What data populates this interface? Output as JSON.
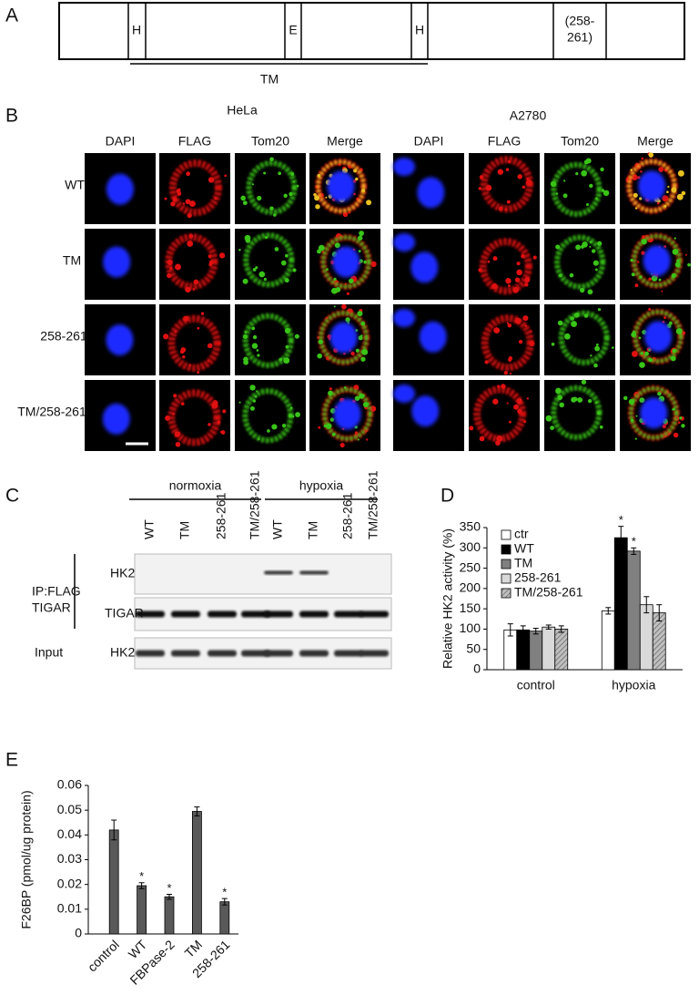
{
  "panel_labels": [
    "A",
    "B",
    "C",
    "D",
    "E"
  ],
  "domain_map": {
    "sites": [
      "H",
      "E",
      "H"
    ],
    "motif": [
      "(258-",
      "261)"
    ],
    "region": "TM"
  },
  "imaging": {
    "cell_lines": [
      {
        "name": "HeLa",
        "channels": [
          "DAPI",
          "FLAG",
          "Tom20",
          "Merge"
        ]
      },
      {
        "name": "A2780",
        "channels": [
          "DAPI",
          "FLAG",
          "Tom20",
          "Merge"
        ]
      }
    ],
    "rows": [
      "WT",
      "TM",
      "258-261",
      "TM/258-261"
    ]
  },
  "blot": {
    "conditions": [
      "normoxia",
      "hypoxia"
    ],
    "lanes": [
      "WT",
      "TM",
      "258-261",
      "TM/258-261",
      "WT",
      "TM",
      "258-261",
      "TM/258-261"
    ],
    "ip_label": [
      "IP:FLAG",
      "TIGAR"
    ],
    "input_label": "Input",
    "bands": [
      "HK2",
      "TIGAR",
      "HK2"
    ]
  },
  "chart_data": [
    {
      "type": "bar",
      "ylabel": "Relative HK2 activity (%)",
      "categories": [
        "control",
        "hypoxia"
      ],
      "series": [
        {
          "name": "ctr",
          "color": "#ffffff",
          "values": [
            98,
            145
          ],
          "errors": [
            15,
            8
          ],
          "significance": [
            null,
            null
          ]
        },
        {
          "name": "WT",
          "color": "#000000",
          "values": [
            98,
            325
          ],
          "errors": [
            10,
            28
          ],
          "significance": [
            null,
            "*"
          ]
        },
        {
          "name": "TM",
          "color": "#808080",
          "values": [
            95,
            292
          ],
          "errors": [
            7,
            8
          ],
          "significance": [
            null,
            "*"
          ]
        },
        {
          "name": "258-261",
          "color": "#d9d9d9",
          "values": [
            105,
            160
          ],
          "errors": [
            5,
            20
          ],
          "significance": [
            null,
            null
          ]
        },
        {
          "name": "TM/258-261",
          "color": "#a6a6a6",
          "hatch": true,
          "values": [
            100,
            140
          ],
          "errors": [
            8,
            20
          ],
          "significance": [
            null,
            null
          ]
        }
      ],
      "ylim": [
        0,
        350
      ],
      "yticks": [
        0,
        50,
        100,
        150,
        200,
        250,
        300,
        350
      ],
      "legend": "upper left"
    },
    {
      "type": "bar",
      "ylabel": "F26BP (pmol/ug protein)",
      "categories": [
        "control",
        "WT",
        "FBPase-2",
        "TM",
        "258-261"
      ],
      "values": [
        0.042,
        0.0195,
        0.015,
        0.0495,
        0.013
      ],
      "errors": [
        0.004,
        0.0012,
        0.001,
        0.0018,
        0.0013
      ],
      "significance": [
        null,
        "*",
        "*",
        null,
        "*"
      ],
      "color": "#595959",
      "ylim": [
        0,
        0.06
      ],
      "yticks": [
        0,
        0.01,
        0.02,
        0.03,
        0.04,
        0.05,
        0.06
      ]
    }
  ]
}
